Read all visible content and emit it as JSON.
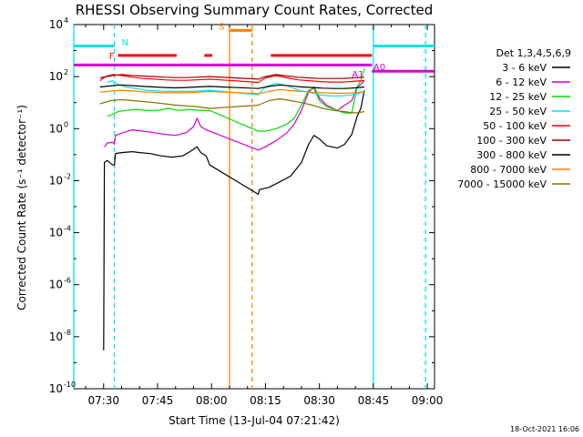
{
  "chart_data": {
    "type": "line",
    "title": "RHESSI Observing Summary Count Rates, Corrected",
    "xlabel": "Start Time (13-Jul-04 07:21:42)",
    "ylabel": "Corrected Count Rate (s⁻¹ detector⁻¹)",
    "y_scale": "log",
    "ylim": [
      1e-10,
      10000.0
    ],
    "xlim_minutes": [
      441.7,
      542.0
    ],
    "x_ticks": [
      {
        "label": "07:30",
        "min": 450
      },
      {
        "label": "07:45",
        "min": 465
      },
      {
        "label": "08:00",
        "min": 480
      },
      {
        "label": "08:15",
        "min": 495
      },
      {
        "label": "08:30",
        "min": 510
      },
      {
        "label": "08:45",
        "min": 525
      },
      {
        "label": "09:00",
        "min": 540
      }
    ],
    "y_ticks": [
      {
        "base": "10",
        "exp": "4",
        "v": 10000.0
      },
      {
        "base": "10",
        "exp": "2",
        "v": 100.0
      },
      {
        "base": "10",
        "exp": "0",
        "v": 1
      },
      {
        "base": "10",
        "exp": "-2",
        "v": 0.01
      },
      {
        "base": "10",
        "exp": "-4",
        "v": 0.0001
      },
      {
        "base": "10",
        "exp": "-6",
        "v": 1e-06
      },
      {
        "base": "10",
        "exp": "-8",
        "v": 1e-08
      },
      {
        "base": "10",
        "exp": "-10",
        "v": 1e-10
      }
    ],
    "legend_title": "Det 1,3,4,5,6,9",
    "legend_position": "right",
    "grid": false,
    "series": [
      {
        "name": "3 - 6 keV",
        "color": "#000000",
        "points": [
          [
            450.0,
            3e-09
          ],
          [
            450.2,
            0.05
          ],
          [
            451.0,
            0.06
          ],
          [
            452.5,
            0.04
          ],
          [
            453.0,
            0.04
          ],
          [
            453.3,
            0.11
          ],
          [
            455,
            0.12
          ],
          [
            458,
            0.13
          ],
          [
            460,
            0.12
          ],
          [
            463,
            0.11
          ],
          [
            466,
            0.09
          ],
          [
            469,
            0.08
          ],
          [
            472,
            0.09
          ],
          [
            474,
            0.13
          ],
          [
            476,
            0.2
          ],
          [
            477,
            0.12
          ],
          [
            478.5,
            0.09
          ],
          [
            479,
            0.06
          ],
          [
            479.5,
            0.04
          ],
          [
            493,
            0.003
          ],
          [
            493.3,
            0.0045
          ],
          [
            496,
            0.0055
          ],
          [
            499,
            0.009
          ],
          [
            502,
            0.015
          ],
          [
            505,
            0.05
          ],
          [
            507,
            0.25
          ],
          [
            508.5,
            0.55
          ],
          [
            510,
            0.4
          ],
          [
            512,
            0.22
          ],
          [
            515,
            0.18
          ],
          [
            517,
            0.25
          ],
          [
            519,
            0.6
          ],
          [
            520.5,
            3.0
          ],
          [
            521.5,
            6.0
          ],
          [
            522.5,
            30
          ]
        ]
      },
      {
        "name": "6 - 12 keV",
        "color": "#d200d2",
        "points": [
          [
            450.2,
            0.2
          ],
          [
            451,
            0.28
          ],
          [
            452.5,
            0.3
          ],
          [
            453,
            0.25
          ],
          [
            453.3,
            0.55
          ],
          [
            456,
            0.75
          ],
          [
            458,
            0.9
          ],
          [
            461,
            0.8
          ],
          [
            464,
            0.7
          ],
          [
            467,
            0.6
          ],
          [
            470,
            0.55
          ],
          [
            473,
            0.7
          ],
          [
            475,
            1.2
          ],
          [
            476,
            2.5
          ],
          [
            477,
            1.2
          ],
          [
            478.5,
            0.9
          ],
          [
            479.5,
            0.8
          ],
          [
            493,
            0.15
          ],
          [
            495,
            0.2
          ],
          [
            498,
            0.35
          ],
          [
            501,
            0.7
          ],
          [
            503,
            1.5
          ],
          [
            505,
            5
          ],
          [
            507,
            25
          ],
          [
            508.5,
            40
          ],
          [
            510,
            15
          ],
          [
            512,
            8
          ],
          [
            515,
            5
          ],
          [
            517,
            8
          ],
          [
            519,
            12
          ],
          [
            520.5,
            40
          ],
          [
            521.5,
            50
          ],
          [
            522.5,
            70
          ]
        ]
      },
      {
        "name": "12 - 25 keV",
        "color": "#00dc00",
        "points": [
          [
            451,
            3
          ],
          [
            452.5,
            3.5
          ],
          [
            454,
            4.5
          ],
          [
            456,
            5
          ],
          [
            459,
            5.5
          ],
          [
            462,
            5
          ],
          [
            465,
            5
          ],
          [
            468,
            6
          ],
          [
            471,
            5
          ],
          [
            474,
            5.5
          ],
          [
            477,
            5
          ],
          [
            479.5,
            5
          ],
          [
            493,
            0.8
          ],
          [
            495,
            0.8
          ],
          [
            498,
            1.0
          ],
          [
            501,
            1.5
          ],
          [
            503,
            2.5
          ],
          [
            505,
            8
          ],
          [
            507,
            30
          ],
          [
            508.5,
            35
          ],
          [
            510,
            12
          ],
          [
            512,
            7
          ],
          [
            515,
            5
          ],
          [
            517,
            4
          ],
          [
            519,
            4
          ],
          [
            520.5,
            40
          ],
          [
            521.5,
            70
          ],
          [
            522.5,
            200
          ]
        ]
      },
      {
        "name": "25 - 50 keV",
        "color": "#00e6e6",
        "points": [
          [
            451,
            60
          ],
          [
            452.5,
            70
          ],
          [
            454,
            50
          ],
          [
            456,
            40
          ],
          [
            459,
            35
          ],
          [
            462,
            30
          ],
          [
            465,
            28
          ],
          [
            468,
            27
          ],
          [
            471,
            27
          ],
          [
            474,
            27
          ],
          [
            477,
            28
          ],
          [
            479.5,
            30
          ],
          [
            493,
            20
          ],
          [
            495,
            40
          ],
          [
            498,
            55
          ],
          [
            501,
            45
          ],
          [
            504,
            30
          ],
          [
            507,
            25
          ],
          [
            510,
            20
          ],
          [
            513,
            18
          ],
          [
            516,
            18
          ],
          [
            519,
            20
          ],
          [
            521,
            22
          ],
          [
            522.5,
            28
          ]
        ]
      },
      {
        "name": "50 - 100 keV",
        "color": "#ff0000",
        "points": [
          [
            449,
            70
          ],
          [
            450.5,
            100
          ],
          [
            452.5,
            120
          ],
          [
            455,
            110
          ],
          [
            458,
            95
          ],
          [
            461,
            85
          ],
          [
            464,
            80
          ],
          [
            467,
            75
          ],
          [
            470,
            72
          ],
          [
            473,
            72
          ],
          [
            476,
            75
          ],
          [
            479.5,
            80
          ],
          [
            493,
            60
          ],
          [
            495,
            90
          ],
          [
            498,
            110
          ],
          [
            501,
            90
          ],
          [
            504,
            75
          ],
          [
            507,
            70
          ],
          [
            510,
            65
          ],
          [
            513,
            62
          ],
          [
            516,
            62
          ],
          [
            519,
            65
          ],
          [
            521,
            68
          ],
          [
            522.5,
            70
          ]
        ]
      },
      {
        "name": "100 - 300 keV",
        "color": "#a00000",
        "points": [
          [
            449,
            90
          ],
          [
            452.5,
            110
          ],
          [
            455,
            120
          ],
          [
            458,
            110
          ],
          [
            461,
            105
          ],
          [
            464,
            100
          ],
          [
            467,
            95
          ],
          [
            470,
            92
          ],
          [
            473,
            92
          ],
          [
            476,
            95
          ],
          [
            479.5,
            100
          ],
          [
            493,
            80
          ],
          [
            495,
            100
          ],
          [
            498,
            120
          ],
          [
            501,
            105
          ],
          [
            504,
            95
          ],
          [
            507,
            90
          ],
          [
            510,
            85
          ],
          [
            513,
            85
          ],
          [
            516,
            85
          ],
          [
            519,
            88
          ],
          [
            521,
            92
          ],
          [
            522.5,
            95
          ]
        ]
      },
      {
        "name": "300 - 800 keV",
        "color": "#000000",
        "points": [
          [
            449,
            40
          ],
          [
            452.5,
            45
          ],
          [
            455,
            48
          ],
          [
            458,
            45
          ],
          [
            461,
            42
          ],
          [
            464,
            40
          ],
          [
            467,
            38
          ],
          [
            470,
            37
          ],
          [
            473,
            38
          ],
          [
            476,
            40
          ],
          [
            479.5,
            42
          ],
          [
            493,
            35
          ],
          [
            496,
            42
          ],
          [
            499,
            48
          ],
          [
            502,
            44
          ],
          [
            505,
            40
          ],
          [
            508,
            38
          ],
          [
            511,
            36
          ],
          [
            514,
            35
          ],
          [
            517,
            35
          ],
          [
            520,
            37
          ],
          [
            522.5,
            40
          ]
        ]
      },
      {
        "name": "800 - 7000 keV",
        "color": "#ff8000",
        "points": [
          [
            449,
            25
          ],
          [
            452.5,
            28
          ],
          [
            455,
            30
          ],
          [
            458,
            28
          ],
          [
            461,
            26
          ],
          [
            464,
            25
          ],
          [
            467,
            24
          ],
          [
            470,
            24
          ],
          [
            473,
            24
          ],
          [
            476,
            25
          ],
          [
            479.5,
            27
          ],
          [
            493,
            22
          ],
          [
            496,
            27
          ],
          [
            499,
            32
          ],
          [
            502,
            29
          ],
          [
            505,
            27
          ],
          [
            508,
            25
          ],
          [
            511,
            24
          ],
          [
            514,
            23
          ],
          [
            517,
            23
          ],
          [
            520,
            24
          ],
          [
            522.5,
            26
          ]
        ]
      },
      {
        "name": "7000 - 15000 keV",
        "color": "#8c6e00",
        "points": [
          [
            449,
            9
          ],
          [
            452,
            12
          ],
          [
            455,
            13
          ],
          [
            458,
            12
          ],
          [
            461,
            11
          ],
          [
            464,
            10
          ],
          [
            467,
            9
          ],
          [
            470,
            8
          ],
          [
            473,
            7.5
          ],
          [
            476,
            7
          ],
          [
            479.5,
            6
          ],
          [
            493,
            8
          ],
          [
            496,
            12
          ],
          [
            499,
            14
          ],
          [
            502,
            12
          ],
          [
            505,
            10
          ],
          [
            508,
            8
          ],
          [
            511,
            6
          ],
          [
            514,
            5
          ],
          [
            517,
            4.5
          ],
          [
            520,
            4
          ],
          [
            522.5,
            4.5
          ]
        ]
      }
    ],
    "annotations": {
      "saa_orange": {
        "color": "#ff8000",
        "lines": [
          {
            "min": 485.0,
            "style": "solid"
          },
          {
            "min": 491.3,
            "style": "dashed"
          }
        ]
      },
      "night_cyan": {
        "color": "#00e6e6",
        "lines": [
          {
            "min": 441.7,
            "style": "solid"
          },
          {
            "min": 453.0,
            "style": "dashed"
          },
          {
            "min": 525.0,
            "style": "solid"
          },
          {
            "min": 539.5,
            "style": "dashed"
          }
        ]
      },
      "flags": [
        {
          "label": "N",
          "color": "#00e6e6",
          "segments": [
            [
              441.7,
              453.0
            ],
            [
              525.0,
              542.0
            ]
          ],
          "level": 1500,
          "label_min": 455.0,
          "label_level": 2200
        },
        {
          "label": "F",
          "color": "#ff0000",
          "segments": [
            [
              454.0,
              470.3
            ],
            [
              478.0,
              480.2
            ],
            [
              496.5,
              524.6
            ]
          ],
          "level": 650,
          "label_min": 451.5,
          "label_level": 650
        },
        {
          "label": "S",
          "color": "#ff8000",
          "segments": [
            [
              485.0,
              491.3
            ]
          ],
          "level": 6000,
          "label_min": 482.0,
          "label_level": 9000
        },
        {
          "label": "A1",
          "color": "#d200d2",
          "segments": [
            [
              441.7,
              524.6
            ]
          ],
          "level": 280,
          "label_min": 519.0,
          "label_level": 130
        },
        {
          "label": "A0",
          "color": "#d200d2",
          "segments": [
            [
              524.6,
              542.0
            ]
          ],
          "level": 160,
          "label_min": 525.0,
          "label_level": 250
        }
      ]
    }
  },
  "footer": {
    "date": "18-Oct-2021 16:06"
  }
}
